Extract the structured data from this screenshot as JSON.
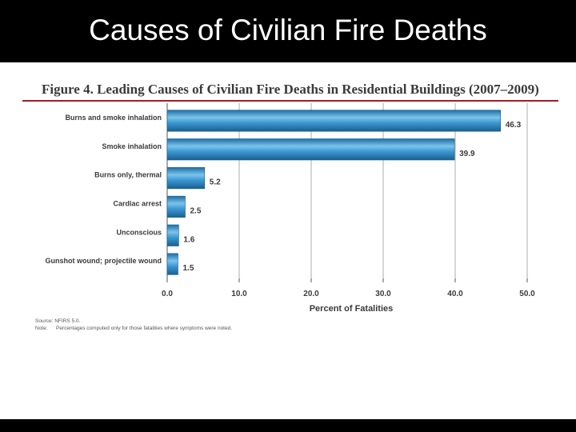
{
  "slide": {
    "title": "Causes of Civilian Fire Deaths"
  },
  "chart_data": {
    "type": "bar",
    "orientation": "horizontal",
    "title": "Figure 4. Leading Causes of Civilian Fire Deaths in Residential Buildings (2007–2009)",
    "categories": [
      "Burns and smoke inhalation",
      "Smoke inhalation",
      "Burns only, thermal",
      "Cardiac arrest",
      "Unconscious",
      "Gunshot wound; projectile wound"
    ],
    "values": [
      46.3,
      39.9,
      5.2,
      2.5,
      1.6,
      1.5
    ],
    "data_labels": [
      "46.3",
      "39.9",
      "5.2",
      "2.5",
      "1.6",
      "1.5"
    ],
    "xlabel": "Percent of Fatalities",
    "xlim": [
      0,
      50
    ],
    "xticks": [
      0,
      10,
      20,
      30,
      40,
      50
    ],
    "xtick_labels": [
      "0.0",
      "10.0",
      "20.0",
      "30.0",
      "40.0",
      "50.0"
    ],
    "grid": "vertical",
    "bar_color": "#2e8ec8"
  },
  "notes": {
    "source": "Source: NFIRS 5.0.",
    "note_label": "Note:",
    "note_text": "Percentages computed only for those fatalities where symptoms were noted."
  }
}
